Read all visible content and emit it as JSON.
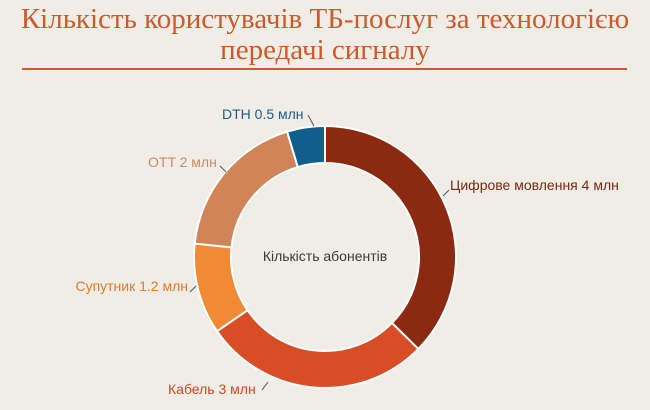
{
  "title_line1": "Кількість користувачів ТБ-послуг за технологією",
  "title_line2": "передачі сигналу",
  "chart_data": {
    "type": "pie",
    "donut": true,
    "center_label": "Кількість абонентів",
    "unit": "млн",
    "slices": [
      {
        "name": "Цифрове мовлення",
        "value": 4,
        "label": "Цифрове мовлення 4 млн",
        "color": "#8b2a10"
      },
      {
        "name": "Кабель",
        "value": 3,
        "label": "Кабель 3 млн",
        "color": "#d94d26"
      },
      {
        "name": "Супутник",
        "value": 1.2,
        "label": "Супутник 1.2 млн",
        "color": "#f08a35"
      },
      {
        "name": "OTT",
        "value": 2,
        "label": "OTT 2 млн",
        "color": "#d08458"
      },
      {
        "name": "DTH",
        "value": 0.5,
        "label": "DTH 0.5 млн",
        "color": "#0f5f8a"
      }
    ]
  }
}
